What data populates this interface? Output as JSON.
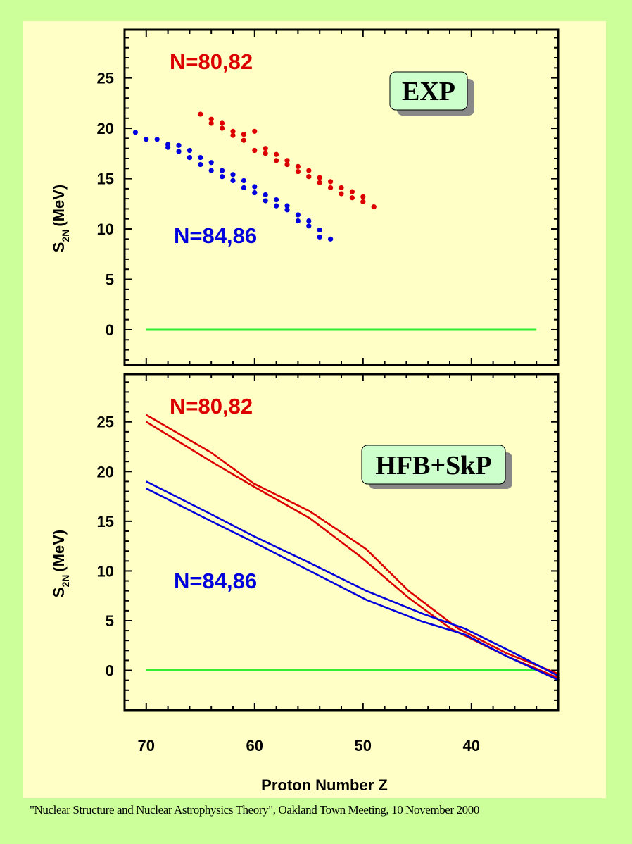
{
  "chart_data": [
    {
      "type": "scatter",
      "panel": "top",
      "badge": "EXP",
      "xlabel": "",
      "ylabel": "S2N (MeV)",
      "ylabel_main": "S",
      "ylabel_sub": "2N",
      "ylabel_unit": "(MeV)",
      "xlim": [
        72,
        32
      ],
      "ylim": [
        -3.5,
        29.8
      ],
      "x_ticks": [
        70,
        60,
        50,
        40
      ],
      "y_ticks": [
        0,
        5,
        10,
        15,
        20,
        25
      ],
      "grid": false,
      "reference_line": {
        "y": 0,
        "x_from": 70,
        "x_to": 34,
        "color": "#33ee33"
      },
      "series": [
        {
          "name": "N=80,82",
          "color": "#dd0000",
          "points": [
            [
              65,
              21.4
            ],
            [
              64,
              20.9
            ],
            [
              64,
              20.5
            ],
            [
              63,
              20.5
            ],
            [
              63,
              20.0
            ],
            [
              62,
              19.7
            ],
            [
              62,
              19.3
            ],
            [
              61,
              19.4
            ],
            [
              61,
              18.8
            ],
            [
              60,
              19.7
            ],
            [
              60,
              17.8
            ],
            [
              59,
              18.0
            ],
            [
              59,
              17.5
            ],
            [
              58,
              17.4
            ],
            [
              58,
              16.8
            ],
            [
              57,
              16.8
            ],
            [
              57,
              16.4
            ],
            [
              56,
              16.2
            ],
            [
              56,
              15.7
            ],
            [
              55,
              15.8
            ],
            [
              55,
              15.2
            ],
            [
              54,
              15.1
            ],
            [
              54,
              14.6
            ],
            [
              53,
              14.7
            ],
            [
              53,
              14.1
            ],
            [
              52,
              14.1
            ],
            [
              52,
              13.5
            ],
            [
              51,
              13.7
            ],
            [
              51,
              13.1
            ],
            [
              50,
              13.2
            ],
            [
              50,
              12.7
            ],
            [
              49,
              12.2
            ]
          ]
        },
        {
          "name": "N=84,86",
          "color": "#0000dd",
          "points": [
            [
              71,
              19.6
            ],
            [
              70,
              18.9
            ],
            [
              69,
              18.9
            ],
            [
              68,
              18.4
            ],
            [
              68,
              18.1
            ],
            [
              67,
              18.3
            ],
            [
              67,
              17.7
            ],
            [
              66,
              17.8
            ],
            [
              66,
              17.1
            ],
            [
              65,
              17.1
            ],
            [
              65,
              16.4
            ],
            [
              64,
              16.6
            ],
            [
              64,
              15.8
            ],
            [
              63,
              15.8
            ],
            [
              63,
              15.2
            ],
            [
              62,
              15.4
            ],
            [
              62,
              14.8
            ],
            [
              61,
              14.8
            ],
            [
              61,
              14.1
            ],
            [
              60,
              14.2
            ],
            [
              60,
              13.6
            ],
            [
              59,
              13.4
            ],
            [
              59,
              12.8
            ],
            [
              58,
              12.9
            ],
            [
              58,
              12.3
            ],
            [
              57,
              12.3
            ],
            [
              57,
              11.9
            ],
            [
              56,
              11.4
            ],
            [
              56,
              10.8
            ],
            [
              55,
              10.8
            ],
            [
              55,
              10.3
            ],
            [
              54,
              9.9
            ],
            [
              54,
              9.2
            ],
            [
              53,
              9.0
            ]
          ]
        }
      ]
    },
    {
      "type": "line",
      "panel": "bottom",
      "badge": "HFB+SkP",
      "xlabel": "Proton Number Z",
      "ylabel": "S2N (MeV)",
      "ylabel_main": "S",
      "ylabel_sub": "2N",
      "ylabel_unit": "(MeV)",
      "xlim": [
        72,
        32
      ],
      "ylim": [
        -4,
        29.8
      ],
      "x_ticks": [
        70,
        60,
        50,
        40
      ],
      "y_ticks": [
        0,
        5,
        10,
        15,
        20,
        25
      ],
      "grid": false,
      "reference_line": {
        "y": 0,
        "x_from": 70,
        "x_to": 34,
        "color": "#33ee33"
      },
      "series": [
        {
          "name": "N=80",
          "group_label": "N=80,82",
          "color": "#dd0000",
          "x": [
            70,
            64,
            60.1,
            54.9,
            49.7,
            45.8,
            41.2,
            36.7,
            32.1,
            31.9
          ],
          "y": [
            25.7,
            21.9,
            18.8,
            16.0,
            12.2,
            8.0,
            4.2,
            1.7,
            -0.3,
            -0.4
          ]
        },
        {
          "name": "N=82",
          "group_label": "N=80,82",
          "color": "#dd0000",
          "x": [
            70,
            64,
            60.1,
            54.9,
            50.3,
            45.8,
            41.9,
            36.7,
            31.9
          ],
          "y": [
            25.0,
            21.0,
            18.5,
            15.3,
            11.5,
            7.3,
            4.2,
            1.4,
            -0.8
          ]
        },
        {
          "name": "N=84",
          "group_label": "N=84,86",
          "color": "#0000dd",
          "x": [
            70,
            64,
            60.1,
            54.9,
            49.7,
            44.5,
            40.6,
            36.7,
            31.9
          ],
          "y": [
            19.0,
            15.7,
            13.5,
            10.8,
            8.0,
            5.7,
            4.2,
            2.1,
            -0.6
          ]
        },
        {
          "name": "N=86",
          "group_label": "N=84,86",
          "color": "#0000dd",
          "x": [
            70,
            64,
            60.1,
            54.9,
            49.7,
            44.5,
            40.6,
            36.7,
            31.9
          ],
          "y": [
            18.3,
            15.0,
            12.9,
            10.0,
            7.1,
            4.9,
            3.6,
            1.4,
            -1.0
          ]
        }
      ]
    }
  ],
  "labels": {
    "top_red": "N=80,82",
    "top_blue": "N=84,86",
    "bottom_red": "N=80,82",
    "bottom_blue": "N=84,86",
    "top_badge": "EXP",
    "bottom_badge": "HFB+SkP",
    "x_axis_title": "Proton Number Z",
    "y_axis_main": "S",
    "y_axis_sub": "2N",
    "y_axis_unit": "(MeV)"
  },
  "colors": {
    "page_bg": "#ccff99",
    "panel_bg": "#ffffc6",
    "red": "#dd0000",
    "blue": "#0000dd",
    "zero_line": "#33ee33",
    "badge_bg": "#ccffcc",
    "badge_shadow": "#888888"
  },
  "footer": {
    "text": "\"Nuclear Structure and Nuclear Astrophysics Theory\", Oakland Town Meeting, 10 November 2000"
  }
}
